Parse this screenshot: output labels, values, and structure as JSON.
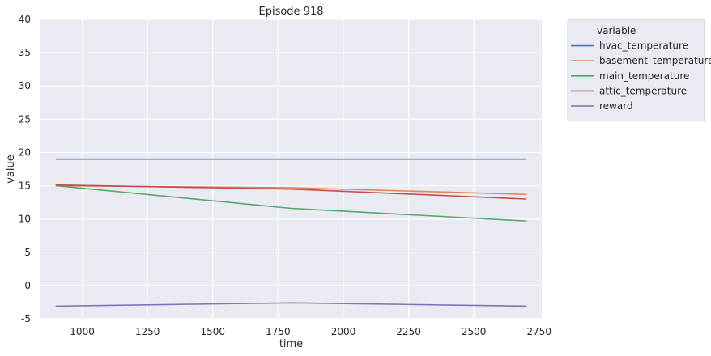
{
  "chart_data": {
    "type": "line",
    "title": "Episode 918",
    "xlabel": "time",
    "ylabel": "value",
    "xlim": [
      840,
      2760
    ],
    "ylim": [
      -5,
      40
    ],
    "x_ticks": [
      1000,
      1250,
      1500,
      1750,
      2000,
      2250,
      2500,
      2750
    ],
    "y_ticks": [
      -5,
      0,
      5,
      10,
      15,
      20,
      25,
      30,
      35,
      40
    ],
    "grid": true,
    "legend_title": "variable",
    "legend_position": "outside-top-right",
    "x": [
      900,
      1800,
      2700
    ],
    "series": [
      {
        "name": "hvac_temperature",
        "color": "#4c72b0",
        "values": [
          19.0,
          19.0,
          19.0
        ]
      },
      {
        "name": "basement_temperature",
        "color": "#dd8452",
        "values": [
          15.0,
          14.7,
          13.7
        ]
      },
      {
        "name": "main_temperature",
        "color": "#55a868",
        "values": [
          15.0,
          11.6,
          9.7
        ]
      },
      {
        "name": "attic_temperature",
        "color": "#c44e52",
        "values": [
          15.1,
          14.5,
          13.0
        ]
      },
      {
        "name": "reward",
        "color": "#8172b3",
        "values": [
          -3.1,
          -2.6,
          -3.1
        ]
      }
    ]
  }
}
